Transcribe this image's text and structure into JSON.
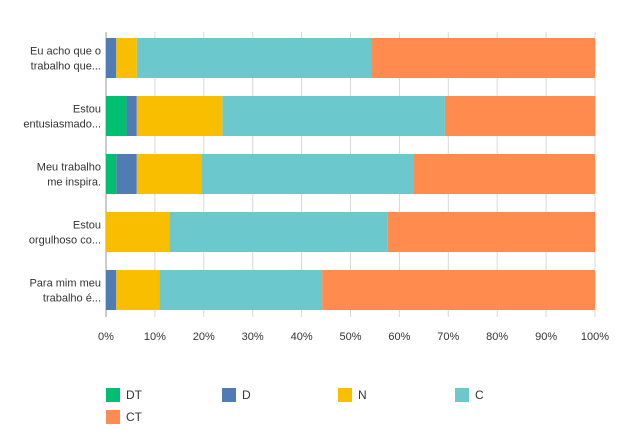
{
  "chart_data": {
    "type": "bar",
    "orientation": "horizontal",
    "stacked": true,
    "categories": [
      [
        "Eu acho que o",
        "trabalho que..."
      ],
      [
        "Estou",
        "entusiasmado..."
      ],
      [
        "Meu trabalho",
        "me inspira."
      ],
      [
        "Estou",
        "orgulhoso co..."
      ],
      [
        "Para mim meu",
        "trabalho é..."
      ]
    ],
    "series": [
      {
        "name": "DT",
        "color": "#00bf6f",
        "values": [
          0,
          4.2,
          2.1,
          0,
          0
        ]
      },
      {
        "name": "D",
        "color": "#507cb6",
        "values": [
          2.1,
          2.1,
          4.2,
          0,
          2.1
        ]
      },
      {
        "name": "N",
        "color": "#f9be00",
        "values": [
          4.2,
          17.5,
          13.2,
          13.0,
          8.8
        ]
      },
      {
        "name": "C",
        "color": "#6bc8cd",
        "values": [
          48.0,
          45.5,
          43.3,
          44.6,
          33.3
        ]
      },
      {
        "name": "CT",
        "color": "#ff8b4f",
        "values": [
          45.7,
          30.7,
          37.2,
          42.4,
          55.8
        ]
      }
    ],
    "xlim": [
      0,
      100
    ],
    "xticks": [
      "0%",
      "10%",
      "20%",
      "30%",
      "40%",
      "50%",
      "60%",
      "70%",
      "80%",
      "90%",
      "100%"
    ],
    "grid": true,
    "legend_position": "bottom"
  }
}
